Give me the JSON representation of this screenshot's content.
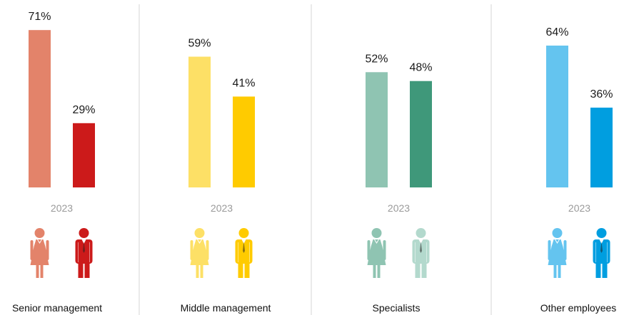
{
  "chart_data": {
    "type": "bar",
    "ylim": [
      0,
      100
    ],
    "groups": [
      {
        "category": "Senior management",
        "year": "2023",
        "bars": [
          {
            "icon": "woman-icon",
            "value": 71,
            "label": "71%",
            "color": "#E3836A"
          },
          {
            "icon": "man-icon",
            "value": 29,
            "label": "29%",
            "color": "#CC1A1A"
          }
        ]
      },
      {
        "category": "Middle management",
        "year": "2023",
        "bars": [
          {
            "icon": "woman-icon",
            "value": 59,
            "label": "59%",
            "color": "#FDE066"
          },
          {
            "icon": "man-icon",
            "value": 41,
            "label": "41%",
            "color": "#FFCB00"
          }
        ]
      },
      {
        "category": "Specialists",
        "year": "2023",
        "bars": [
          {
            "icon": "woman-icon",
            "value": 52,
            "label": "52%",
            "color": "#8FC4B2"
          },
          {
            "icon": "man-icon",
            "value": 48,
            "label": "48%",
            "color": "#3F987A"
          }
        ]
      },
      {
        "category": "Other employees",
        "year": "2023",
        "bars": [
          {
            "icon": "woman-icon",
            "value": 64,
            "label": "64%",
            "color": "#64C4EF"
          },
          {
            "icon": "man-icon",
            "value": 36,
            "label": "36%",
            "color": "#009EE0"
          }
        ]
      }
    ]
  },
  "icon_colors": {
    "groups": [
      {
        "woman": "#E3836A",
        "man": "#CC1A1A"
      },
      {
        "woman": "#FDE066",
        "man": "#FFCB00"
      },
      {
        "woman": "#8FC4B2",
        "man": "#B3D9CD"
      },
      {
        "woman": "#64C4EF",
        "man": "#009EE0"
      }
    ]
  }
}
